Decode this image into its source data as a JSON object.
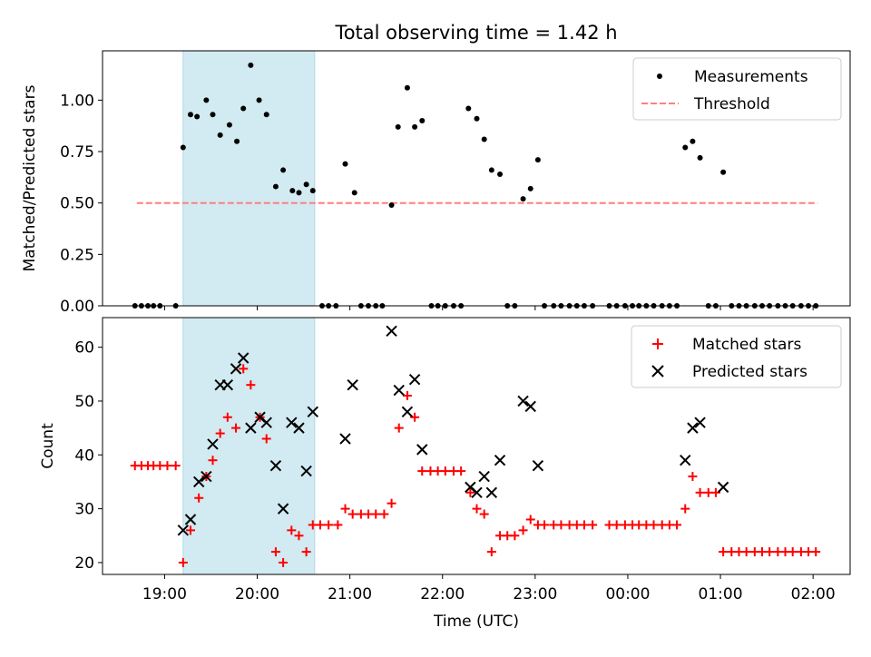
{
  "chart_data": {
    "title": "Total observing time = 1.42 h",
    "xlabel": "Time (UTC)",
    "x_tick_labels": [
      "19:00",
      "20:00",
      "21:00",
      "22:00",
      "23:00",
      "00:00",
      "01:00",
      "02:00"
    ],
    "x_tick_hours": [
      19,
      20,
      21,
      22,
      23,
      24,
      25,
      26
    ],
    "xlim_hours": [
      18.33,
      26.4
    ],
    "highlight_span_hours": [
      19.2,
      20.62
    ],
    "colors": {
      "measurement": "#000000",
      "threshold": "#ff7f7f",
      "matched": "#ff0000",
      "predicted": "#000000",
      "highlight": "#add8e6"
    },
    "panels": [
      {
        "type": "scatter",
        "ylabel": "Matched/Predicted stars",
        "ylim": [
          0,
          1.24
        ],
        "y_ticks": [
          0.0,
          0.25,
          0.5,
          0.75,
          1.0
        ],
        "y_tick_labels": [
          "0.00",
          "0.25",
          "0.50",
          "0.75",
          "1.00"
        ],
        "legend_position": "top-right",
        "legend": [
          {
            "label": "Measurements",
            "marker": "dot"
          },
          {
            "label": "Threshold",
            "marker": "dashed-line"
          }
        ],
        "threshold": {
          "y": 0.5,
          "x_range_hours": [
            18.7,
            26.05
          ]
        },
        "series": [
          {
            "name": "Measurements",
            "points": [
              [
                18.68,
                0
              ],
              [
                18.75,
                0
              ],
              [
                18.82,
                0
              ],
              [
                18.88,
                0
              ],
              [
                18.95,
                0
              ],
              [
                19.12,
                0
              ],
              [
                19.2,
                0.77
              ],
              [
                19.28,
                0.93
              ],
              [
                19.35,
                0.92
              ],
              [
                19.45,
                1.0
              ],
              [
                19.52,
                0.93
              ],
              [
                19.6,
                0.83
              ],
              [
                19.7,
                0.88
              ],
              [
                19.78,
                0.8
              ],
              [
                19.85,
                0.96
              ],
              [
                19.93,
                1.17
              ],
              [
                20.02,
                1.0
              ],
              [
                20.1,
                0.93
              ],
              [
                20.2,
                0.58
              ],
              [
                20.28,
                0.66
              ],
              [
                20.38,
                0.56
              ],
              [
                20.45,
                0.55
              ],
              [
                20.53,
                0.59
              ],
              [
                20.6,
                0.56
              ],
              [
                20.7,
                0
              ],
              [
                20.77,
                0
              ],
              [
                20.85,
                0
              ],
              [
                20.95,
                0.69
              ],
              [
                21.05,
                0.55
              ],
              [
                21.12,
                0
              ],
              [
                21.2,
                0
              ],
              [
                21.28,
                0
              ],
              [
                21.35,
                0
              ],
              [
                21.45,
                0.49
              ],
              [
                21.52,
                0.87
              ],
              [
                21.62,
                1.06
              ],
              [
                21.7,
                0.87
              ],
              [
                21.78,
                0.9
              ],
              [
                21.88,
                0
              ],
              [
                21.95,
                0
              ],
              [
                22.03,
                0
              ],
              [
                22.12,
                0
              ],
              [
                22.2,
                0
              ],
              [
                22.28,
                0.96
              ],
              [
                22.37,
                0.91
              ],
              [
                22.45,
                0.81
              ],
              [
                22.53,
                0.66
              ],
              [
                22.62,
                0.64
              ],
              [
                22.7,
                0
              ],
              [
                22.78,
                0
              ],
              [
                22.87,
                0.52
              ],
              [
                22.95,
                0.57
              ],
              [
                23.03,
                0.71
              ],
              [
                23.1,
                0
              ],
              [
                23.2,
                0
              ],
              [
                23.28,
                0
              ],
              [
                23.37,
                0
              ],
              [
                23.45,
                0
              ],
              [
                23.53,
                0
              ],
              [
                23.62,
                0
              ],
              [
                23.8,
                0
              ],
              [
                23.88,
                0
              ],
              [
                23.97,
                0
              ],
              [
                24.05,
                0
              ],
              [
                24.12,
                0
              ],
              [
                24.2,
                0
              ],
              [
                24.28,
                0
              ],
              [
                24.37,
                0
              ],
              [
                24.45,
                0
              ],
              [
                24.53,
                0
              ],
              [
                24.62,
                0.77
              ],
              [
                24.7,
                0.8
              ],
              [
                24.78,
                0.72
              ],
              [
                24.87,
                0
              ],
              [
                24.95,
                0
              ],
              [
                25.03,
                0.65
              ],
              [
                25.12,
                0
              ],
              [
                25.2,
                0
              ],
              [
                25.28,
                0
              ],
              [
                25.37,
                0
              ],
              [
                25.45,
                0
              ],
              [
                25.53,
                0
              ],
              [
                25.62,
                0
              ],
              [
                25.7,
                0
              ],
              [
                25.78,
                0
              ],
              [
                25.87,
                0
              ],
              [
                25.95,
                0
              ],
              [
                26.03,
                0
              ]
            ]
          }
        ]
      },
      {
        "type": "scatter",
        "ylabel": "Count",
        "ylim": [
          17.8,
          65.5
        ],
        "y_ticks": [
          20,
          30,
          40,
          50,
          60
        ],
        "y_tick_labels": [
          "20",
          "30",
          "40",
          "50",
          "60"
        ],
        "legend_position": "top-right",
        "legend": [
          {
            "label": "Matched stars",
            "marker": "plus"
          },
          {
            "label": "Predicted stars",
            "marker": "cross"
          }
        ],
        "series": [
          {
            "name": "Matched stars",
            "marker": "plus",
            "points": [
              [
                18.68,
                38
              ],
              [
                18.75,
                38
              ],
              [
                18.82,
                38
              ],
              [
                18.88,
                38
              ],
              [
                18.95,
                38
              ],
              [
                19.03,
                38
              ],
              [
                19.12,
                38
              ],
              [
                19.2,
                20
              ],
              [
                19.28,
                26
              ],
              [
                19.37,
                32
              ],
              [
                19.45,
                36
              ],
              [
                19.52,
                39
              ],
              [
                19.6,
                44
              ],
              [
                19.68,
                47
              ],
              [
                19.77,
                45
              ],
              [
                19.85,
                56
              ],
              [
                19.93,
                53
              ],
              [
                20.03,
                47
              ],
              [
                20.1,
                43
              ],
              [
                20.2,
                22
              ],
              [
                20.28,
                20
              ],
              [
                20.37,
                26
              ],
              [
                20.45,
                25
              ],
              [
                20.53,
                22
              ],
              [
                20.6,
                27
              ],
              [
                20.68,
                27
              ],
              [
                20.77,
                27
              ],
              [
                20.87,
                27
              ],
              [
                20.95,
                30
              ],
              [
                21.03,
                29
              ],
              [
                21.12,
                29
              ],
              [
                21.2,
                29
              ],
              [
                21.28,
                29
              ],
              [
                21.37,
                29
              ],
              [
                21.45,
                31
              ],
              [
                21.53,
                45
              ],
              [
                21.62,
                51
              ],
              [
                21.7,
                47
              ],
              [
                21.78,
                37
              ],
              [
                21.87,
                37
              ],
              [
                21.95,
                37
              ],
              [
                22.03,
                37
              ],
              [
                22.12,
                37
              ],
              [
                22.2,
                37
              ],
              [
                22.3,
                33
              ],
              [
                22.37,
                30
              ],
              [
                22.45,
                29
              ],
              [
                22.53,
                22
              ],
              [
                22.62,
                25
              ],
              [
                22.7,
                25
              ],
              [
                22.78,
                25
              ],
              [
                22.87,
                26
              ],
              [
                22.95,
                28
              ],
              [
                23.03,
                27
              ],
              [
                23.1,
                27
              ],
              [
                23.2,
                27
              ],
              [
                23.28,
                27
              ],
              [
                23.37,
                27
              ],
              [
                23.45,
                27
              ],
              [
                23.53,
                27
              ],
              [
                23.62,
                27
              ],
              [
                23.8,
                27
              ],
              [
                23.88,
                27
              ],
              [
                23.97,
                27
              ],
              [
                24.05,
                27
              ],
              [
                24.12,
                27
              ],
              [
                24.2,
                27
              ],
              [
                24.28,
                27
              ],
              [
                24.37,
                27
              ],
              [
                24.45,
                27
              ],
              [
                24.53,
                27
              ],
              [
                24.62,
                30
              ],
              [
                24.7,
                36
              ],
              [
                24.78,
                33
              ],
              [
                24.87,
                33
              ],
              [
                24.95,
                33
              ],
              [
                25.03,
                22
              ],
              [
                25.12,
                22
              ],
              [
                25.2,
                22
              ],
              [
                25.28,
                22
              ],
              [
                25.37,
                22
              ],
              [
                25.45,
                22
              ],
              [
                25.53,
                22
              ],
              [
                25.62,
                22
              ],
              [
                25.7,
                22
              ],
              [
                25.78,
                22
              ],
              [
                25.87,
                22
              ],
              [
                25.95,
                22
              ],
              [
                26.03,
                22
              ]
            ]
          },
          {
            "name": "Predicted stars",
            "marker": "cross",
            "points": [
              [
                19.2,
                26
              ],
              [
                19.28,
                28
              ],
              [
                19.37,
                35
              ],
              [
                19.45,
                36
              ],
              [
                19.52,
                42
              ],
              [
                19.6,
                53
              ],
              [
                19.68,
                53
              ],
              [
                19.77,
                56
              ],
              [
                19.85,
                58
              ],
              [
                19.93,
                45
              ],
              [
                20.03,
                47
              ],
              [
                20.1,
                46
              ],
              [
                20.2,
                38
              ],
              [
                20.28,
                30
              ],
              [
                20.37,
                46
              ],
              [
                20.45,
                45
              ],
              [
                20.53,
                37
              ],
              [
                20.6,
                48
              ],
              [
                20.95,
                43
              ],
              [
                21.03,
                53
              ],
              [
                21.45,
                63
              ],
              [
                21.53,
                52
              ],
              [
                21.62,
                48
              ],
              [
                21.7,
                54
              ],
              [
                21.78,
                41
              ],
              [
                22.3,
                34
              ],
              [
                22.37,
                33
              ],
              [
                22.45,
                36
              ],
              [
                22.53,
                33
              ],
              [
                22.62,
                39
              ],
              [
                22.87,
                50
              ],
              [
                22.95,
                49
              ],
              [
                23.03,
                38
              ],
              [
                24.62,
                39
              ],
              [
                24.7,
                45
              ],
              [
                24.78,
                46
              ],
              [
                25.03,
                34
              ]
            ]
          }
        ]
      }
    ]
  }
}
